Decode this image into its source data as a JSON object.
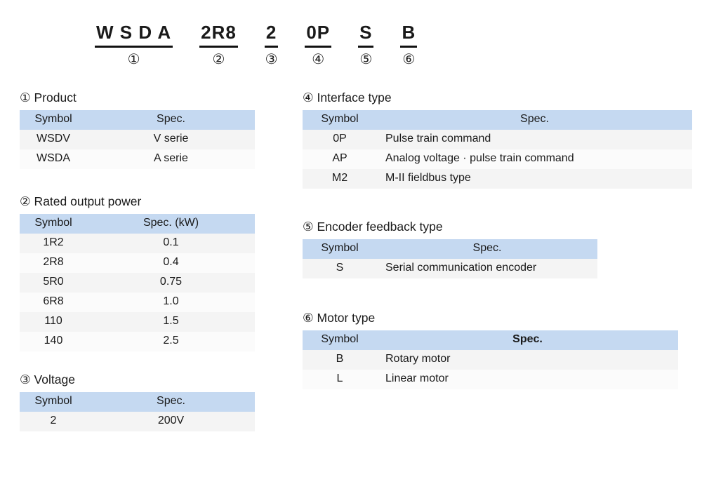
{
  "model_code": {
    "segments": [
      {
        "code": "W S D A",
        "num": "①"
      },
      {
        "code": "2R8",
        "num": "②"
      },
      {
        "code": "2",
        "num": "③"
      },
      {
        "code": "0P",
        "num": "④"
      },
      {
        "code": "S",
        "num": "⑤"
      },
      {
        "code": "B",
        "num": "⑥"
      }
    ]
  },
  "tables": {
    "product": {
      "title": "① Product",
      "headers": {
        "symbol": "Symbol",
        "spec": "Spec."
      },
      "rows": [
        [
          "WSDV",
          "V serie"
        ],
        [
          "WSDA",
          "A serie"
        ]
      ]
    },
    "rated_output_power": {
      "title": "② Rated output power",
      "headers": {
        "symbol": "Symbol",
        "spec": "Spec. (kW)"
      },
      "rows": [
        [
          "1R2",
          "0.1"
        ],
        [
          "2R8",
          "0.4"
        ],
        [
          "5R0",
          "0.75"
        ],
        [
          "6R8",
          "1.0"
        ],
        [
          "110",
          "1.5"
        ],
        [
          "140",
          "2.5"
        ]
      ]
    },
    "voltage": {
      "title": "③ Voltage",
      "headers": {
        "symbol": "Symbol",
        "spec": "Spec."
      },
      "rows": [
        [
          "2",
          "200V"
        ]
      ]
    },
    "interface_type": {
      "title": "④ Interface type",
      "headers": {
        "symbol": "Symbol",
        "spec": "Spec."
      },
      "rows": [
        [
          "0P",
          "Pulse train command"
        ],
        [
          "AP",
          "Analog voltage · pulse train command"
        ],
        [
          "M2",
          "M-II fieldbus type"
        ]
      ]
    },
    "encoder_feedback_type": {
      "title": "⑤ Encoder feedback type",
      "headers": {
        "symbol": "Symbol",
        "spec": "Spec."
      },
      "rows": [
        [
          "S",
          "Serial communication encoder"
        ]
      ]
    },
    "motor_type": {
      "title": "⑥ Motor type",
      "headers": {
        "symbol": "Symbol",
        "spec": "Spec."
      },
      "rows": [
        [
          "B",
          "Rotary motor"
        ],
        [
          "L",
          "Linear motor"
        ]
      ]
    }
  },
  "colors": {
    "header_bg": "#c5d9f1",
    "row_alt_bg": "#f4f4f4",
    "text": "#1a1a1a"
  }
}
